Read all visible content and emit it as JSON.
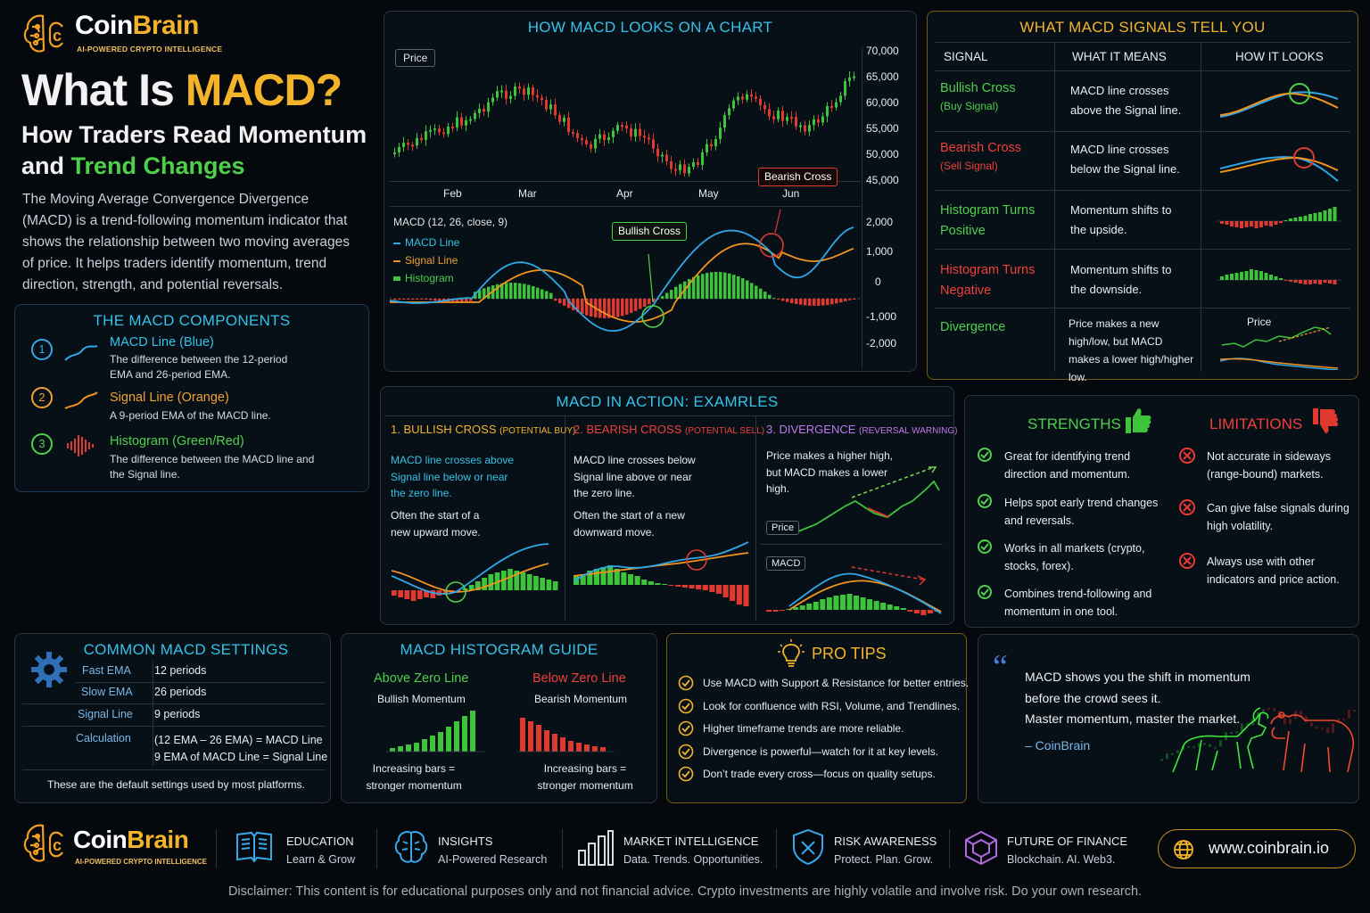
{
  "brand": {
    "name_coin": "Coin",
    "name_brain": "Brain",
    "tagline": "AI-POWERED CRYPTO INTELLIGENCE"
  },
  "hero": {
    "title_a": "What Is ",
    "title_b": "MACD?",
    "subtitle_a": "How Traders Read Momentum",
    "subtitle_b": "and ",
    "subtitle_c": "Trend Changes",
    "body": "The Moving Average Convergence Divergence (MACD) is a trend-following momentum indicator that shows the relationship between two moving averages of price. It helps traders identify momentum, trend direction, strength, and potential reversals."
  },
  "components": {
    "title": "THE MACD COMPONENTS",
    "items": [
      {
        "num": "1",
        "name": "MACD Line",
        "paren": "(Blue)",
        "desc": "The difference between the 12-period EMA and 26-period EMA."
      },
      {
        "num": "2",
        "name": "Signal Line",
        "paren": "(Orange)",
        "desc": "A 9-period EMA of the MACD line."
      },
      {
        "num": "3",
        "name": "Histogram",
        "paren": "(Green/Red)",
        "desc": "The difference between the MACD line and the Signal line."
      }
    ]
  },
  "chart": {
    "title": "HOW MACD LOOKS ON A CHART",
    "price_label": "Price",
    "price_ticks": [
      "70,000",
      "65,000",
      "60,000",
      "55,000",
      "50,000",
      "45,000"
    ],
    "months": [
      "Feb",
      "Mar",
      "Apr",
      "May",
      "Jun"
    ],
    "macd_label": "MACD (12, 26, close, 9)",
    "legend": [
      "MACD Line",
      "Signal Line",
      "Histogram"
    ],
    "macd_ticks": [
      "2,000",
      "1,000",
      "0",
      "-1,000",
      "-2,000"
    ],
    "bullish_label": "Bullish Cross",
    "bearish_label": "Bearish Cross"
  },
  "signals": {
    "title": "WHAT MACD SIGNALS TELL YOU",
    "headers": [
      "SIGNAL",
      "WHAT IT MEANS",
      "HOW IT LOOKS"
    ],
    "rows": [
      {
        "name": "Bullish Cross",
        "sub": "(Buy Signal)",
        "meaning": "MACD line crosses above the Signal line."
      },
      {
        "name": "Bearish Cross",
        "sub": "(Sell Signal)",
        "meaning": "MACD line crosses below the Signal line."
      },
      {
        "name": "Histogram Turns Positive",
        "sub": "",
        "meaning": "Momentum shifts to the upside."
      },
      {
        "name": "Histogram Turns Negative",
        "sub": "",
        "meaning": "Momentum shifts to the downside."
      },
      {
        "name": "Divergence",
        "sub": "",
        "meaning": "Price makes a new high/low, but MACD makes a lower high/higher low."
      }
    ],
    "divergence_price_label": "Price"
  },
  "examples": {
    "title": "MACD IN ACTION: EXAMRLES",
    "items": [
      {
        "head": "1. BULLISH CROSS",
        "tag": "(POTENTIAL BUY)",
        "desc": "MACD line crosses above Signal line below or near the zero line.",
        "note": "Often the start of a new upward move."
      },
      {
        "head": "2. BEARISH CROSS",
        "tag": "(POTENTIAL SELL)",
        "desc": "MACD line crosses below Signal line above or near the zero line.",
        "note": "Often the start of a new downward move."
      },
      {
        "head": "3. DIVERGENCE",
        "tag": "(REVERSAL WARNING)",
        "desc": "Price makes a higher high, but MACD makes a lower high.",
        "price_label": "Price",
        "macd_label": "MACD"
      }
    ]
  },
  "strengths": {
    "title": "STRENGTHS",
    "items": [
      "Great for identifying trend direction and momentum.",
      "Helps spot early trend changes and reversals.",
      "Works in all markets (crypto, stocks, forex).",
      "Combines trend-following and momentum in one tool."
    ]
  },
  "limitations": {
    "title": "LIMITATIONS",
    "items": [
      "Not accurate in sideways (range-bound) markets.",
      "Can give false signals during high volatility.",
      "Always use with other indicators and price action."
    ]
  },
  "settings": {
    "title": "COMMON MACD SETTINGS",
    "rows": [
      {
        "k": "Fast EMA",
        "v": "12 periods"
      },
      {
        "k": "Slow EMA",
        "v": "26 periods"
      },
      {
        "k": "Signal Line",
        "v": "9 periods"
      },
      {
        "k": "Calculation",
        "v": "(12 EMA – 26 EMA) = MACD Line",
        "v2": "9 EMA of MACD Line = Signal Line"
      }
    ],
    "footer": "These are the default settings used by most platforms."
  },
  "histogram_guide": {
    "title": "MACD HISTOGRAM GUIDE",
    "above": {
      "head": "Above Zero Line",
      "sub": "Bullish Momentum",
      "note": "Increasing bars = stronger momentum"
    },
    "below": {
      "head": "Below Zero Line",
      "sub": "Bearish Momentum",
      "note": "Increasing bars = stronger momentum"
    }
  },
  "tips": {
    "title": "PRO TIPS",
    "items": [
      "Use MACD with Support & Resistance for better entries.",
      "Look for confluence with RSI, Volume, and Trendlines.",
      "Higher timeframe trends are more reliable.",
      "Divergence is powerful—watch for it at key levels.",
      "Don’t trade every cross—focus on quality setups."
    ]
  },
  "quote": {
    "lines": [
      "MACD shows you the shift in momentum",
      "before the crowd sees it.",
      "Master momentum, master the market."
    ],
    "author": "– CoinBrain"
  },
  "footer": {
    "items": [
      {
        "title": "EDUCATION",
        "sub": "Learn & Grow"
      },
      {
        "title": "INSIGHTS",
        "sub": "AI-Powered Research"
      },
      {
        "title": "MARKET INTELLIGENCE",
        "sub": "Data. Trends. Opportunities."
      },
      {
        "title": "RISK AWARENESS",
        "sub": "Protect. Plan. Grow."
      },
      {
        "title": "FUTURE OF FINANCE",
        "sub": "Blockchain. AI. Web3."
      }
    ],
    "url": "www.coinbrain.io",
    "disclaimer": "Disclaimer: This content is for educational purposes only and not financial advice. Crypto investments are highly volatile and involve risk. Do your own research."
  },
  "colors": {
    "macd": "#2fa8e8",
    "signal": "#f0941e",
    "bull": "#3ec43a",
    "bear": "#e03a30",
    "gold": "#f4b42a",
    "cyan": "#36c2e8"
  }
}
